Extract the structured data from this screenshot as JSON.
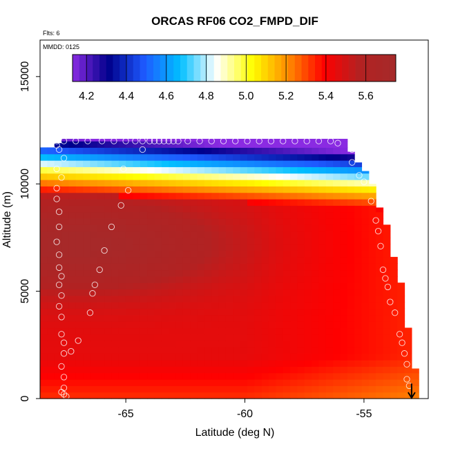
{
  "chart_data": {
    "type": "heatmap",
    "title": "ORCAS RF06 CO2_FMPD_DIF",
    "xlabel": "Latitude (deg N)",
    "ylabel": "Altitude (m)",
    "flights_note": "Flts: 6",
    "date_note": "MMDD: 0125",
    "xlim": [
      -68.6,
      -52.3
    ],
    "ylim": [
      0,
      16700
    ],
    "x_ticks": [
      -65,
      -60,
      -55
    ],
    "x_tick_labels": [
      "-65",
      "-60",
      "-55"
    ],
    "y_ticks": [
      0,
      5000,
      10000,
      15000
    ],
    "y_tick_labels": [
      "0",
      "5000",
      "10000",
      "15000"
    ],
    "colorbar": {
      "min": 4.13,
      "max": 5.75,
      "ticks": [
        4.2,
        4.4,
        4.6,
        4.8,
        5.0,
        5.2,
        5.4,
        5.6
      ],
      "tick_labels": [
        "4.2",
        "4.4",
        "4.6",
        "4.8",
        "5.0",
        "5.2",
        "5.4",
        "5.6"
      ],
      "colors": [
        "#8a2be2",
        "#00008b",
        "#1e5aff",
        "#00bfff",
        "#ffffff",
        "#ffff00",
        "#ff8c00",
        "#ff0000",
        "#b22222",
        "#a52a2a"
      ],
      "placement": "top inside"
    },
    "field": {
      "lat_start": -68.6,
      "lat_end": -52.8,
      "lat_step": 0.3,
      "alt_step": 300,
      "ceiling_by_lat": [
        [
          -68.6,
          11700
        ],
        [
          -68.4,
          11700
        ],
        [
          -68.0,
          11900
        ],
        [
          -67.6,
          12100
        ],
        [
          -56.0,
          12100
        ],
        [
          -55.8,
          11500
        ],
        [
          -55.4,
          11000
        ],
        [
          -55.0,
          10600
        ],
        [
          -54.8,
          10000
        ],
        [
          -54.6,
          9400
        ],
        [
          -54.4,
          8900
        ],
        [
          -54.2,
          8100
        ],
        [
          -54.0,
          7400
        ],
        [
          -53.8,
          6600
        ],
        [
          -53.6,
          5400
        ],
        [
          -53.4,
          4500
        ],
        [
          -53.2,
          3300
        ],
        [
          -53.0,
          1400
        ],
        [
          -52.8,
          300
        ]
      ]
    },
    "observations": {
      "descent_profile": [
        [
          -67.9,
          12000
        ],
        [
          -67.9,
          11800
        ],
        [
          -67.8,
          11600
        ],
        [
          -67.6,
          11200
        ],
        [
          -67.9,
          10700
        ],
        [
          -67.7,
          10300
        ],
        [
          -67.9,
          9800
        ],
        [
          -67.9,
          9300
        ],
        [
          -67.8,
          8700
        ],
        [
          -67.8,
          8000
        ],
        [
          -67.9,
          7300
        ],
        [
          -67.8,
          6700
        ],
        [
          -67.8,
          6100
        ],
        [
          -67.7,
          5700
        ],
        [
          -67.8,
          5300
        ],
        [
          -67.7,
          4800
        ],
        [
          -67.8,
          4300
        ],
        [
          -67.7,
          3800
        ],
        [
          -67.7,
          3000
        ],
        [
          -67.6,
          2600
        ],
        [
          -67.6,
          2100
        ],
        [
          -67.7,
          1500
        ],
        [
          -67.6,
          1000
        ],
        [
          -67.6,
          500
        ],
        [
          -67.7,
          300
        ],
        [
          -67.6,
          200
        ],
        [
          -67.5,
          100
        ]
      ],
      "diagonal_leg": [
        [
          -67.3,
          2200
        ],
        [
          -67.0,
          2700
        ],
        [
          -66.5,
          4000
        ],
        [
          -66.4,
          4900
        ],
        [
          -66.3,
          5300
        ],
        [
          -66.1,
          6000
        ],
        [
          -65.9,
          6900
        ],
        [
          -65.6,
          8000
        ],
        [
          -65.2,
          9000
        ],
        [
          -64.9,
          9700
        ],
        [
          -65.1,
          10700
        ],
        [
          -64.3,
          11600
        ]
      ],
      "top_leg": [
        [
          -67.6,
          12000
        ],
        [
          -67.1,
          12000
        ],
        [
          -66.6,
          12000
        ],
        [
          -66.0,
          12000
        ],
        [
          -65.5,
          12000
        ],
        [
          -65.0,
          12000
        ],
        [
          -64.6,
          12000
        ],
        [
          -64.3,
          12000
        ],
        [
          -64.0,
          12000
        ],
        [
          -63.8,
          12000
        ],
        [
          -63.6,
          12000
        ],
        [
          -63.4,
          12000
        ],
        [
          -63.2,
          12000
        ],
        [
          -63.0,
          12000
        ],
        [
          -62.8,
          12000
        ],
        [
          -62.4,
          12000
        ],
        [
          -61.9,
          12000
        ],
        [
          -61.4,
          12000
        ],
        [
          -60.9,
          12000
        ],
        [
          -60.4,
          12000
        ],
        [
          -59.9,
          12000
        ],
        [
          -59.4,
          12000
        ],
        [
          -58.9,
          12000
        ],
        [
          -58.4,
          12000
        ],
        [
          -57.9,
          12000
        ],
        [
          -57.4,
          12000
        ],
        [
          -56.9,
          12000
        ],
        [
          -56.4,
          12000
        ],
        [
          -56.1,
          11900
        ]
      ],
      "descent_south": [
        [
          -55.5,
          11600
        ],
        [
          -55.5,
          11000
        ],
        [
          -55.2,
          10400
        ],
        [
          -55.0,
          10100
        ],
        [
          -54.7,
          9200
        ],
        [
          -54.5,
          8300
        ],
        [
          -54.4,
          7800
        ],
        [
          -54.3,
          7100
        ],
        [
          -54.2,
          6000
        ],
        [
          -54.1,
          5600
        ],
        [
          -54.0,
          5200
        ],
        [
          -53.9,
          4500
        ],
        [
          -53.7,
          4000
        ],
        [
          -53.5,
          3000
        ],
        [
          -53.4,
          2600
        ],
        [
          -53.3,
          2100
        ],
        [
          -53.2,
          1600
        ],
        [
          -53.2,
          900
        ],
        [
          -53.1,
          600
        ]
      ]
    },
    "arrow_marker": {
      "lat": -53.0,
      "alt_top": 700,
      "alt_bottom": 0
    }
  }
}
